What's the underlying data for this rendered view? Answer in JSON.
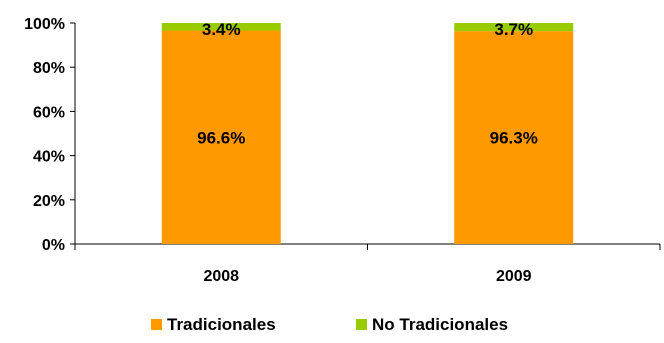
{
  "chart_data": {
    "type": "bar",
    "stacked": true,
    "categories": [
      "2008",
      "2009"
    ],
    "series": [
      {
        "name": "Tradicionales",
        "values": [
          96.6,
          96.3
        ],
        "labels": [
          "96.6%",
          "96.3%"
        ],
        "color": "#ff9900"
      },
      {
        "name": "No Tradicionales",
        "values": [
          3.4,
          3.7
        ],
        "labels": [
          "3.4%",
          "3.7%"
        ],
        "color": "#99cc00"
      }
    ],
    "yticks": [
      "0%",
      "20%",
      "40%",
      "60%",
      "80%",
      "100%"
    ],
    "ylim": [
      0,
      100
    ],
    "grid": false,
    "legend_position": "bottom"
  }
}
